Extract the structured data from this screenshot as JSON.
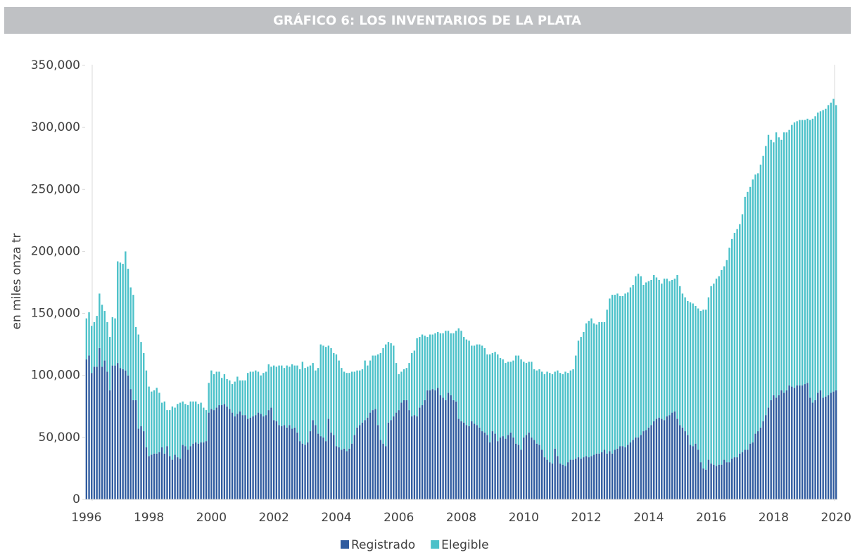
{
  "chart_data": {
    "type": "stacked_bar",
    "title": "GRÁFICO 6: LOS INVENTARIOS DE LA PLATA",
    "y_label": "en miles onza tr",
    "categories": [
      "1996",
      null,
      null,
      null,
      null,
      null,
      null,
      null,
      null,
      null,
      null,
      null,
      null,
      null,
      null,
      null,
      null,
      null,
      null,
      null,
      null,
      null,
      null,
      null,
      "1998",
      null,
      null,
      null,
      null,
      null,
      null,
      null,
      null,
      null,
      null,
      null,
      null,
      null,
      null,
      null,
      null,
      null,
      null,
      null,
      null,
      null,
      null,
      null,
      "2000",
      null,
      null,
      null,
      null,
      null,
      null,
      null,
      null,
      null,
      null,
      null,
      null,
      null,
      null,
      null,
      null,
      null,
      null,
      null,
      null,
      null,
      null,
      null,
      "2002",
      null,
      null,
      null,
      null,
      null,
      null,
      null,
      null,
      null,
      null,
      null,
      null,
      null,
      null,
      null,
      null,
      null,
      null,
      null,
      null,
      null,
      null,
      null,
      "2004",
      null,
      null,
      null,
      null,
      null,
      null,
      null,
      null,
      null,
      null,
      null,
      null,
      null,
      null,
      null,
      null,
      null,
      null,
      null,
      null,
      null,
      null,
      null,
      "2006",
      null,
      null,
      null,
      null,
      null,
      null,
      null,
      null,
      null,
      null,
      null,
      null,
      null,
      null,
      null,
      null,
      null,
      null,
      null,
      null,
      null,
      null,
      null,
      "2008",
      null,
      null,
      null,
      null,
      null,
      null,
      null,
      null,
      null,
      null,
      null,
      null,
      null,
      null,
      null,
      null,
      null,
      null,
      null,
      null,
      null,
      null,
      null,
      "2010",
      null,
      null,
      null,
      null,
      null,
      null,
      null,
      null,
      null,
      null,
      null,
      null,
      null,
      null,
      null,
      null,
      null,
      null,
      null,
      null,
      null,
      null,
      null,
      "2012",
      null,
      null,
      null,
      null,
      null,
      null,
      null,
      null,
      null,
      null,
      null,
      null,
      null,
      null,
      null,
      null,
      null,
      null,
      null,
      null,
      null,
      null,
      null,
      "2014",
      null,
      null,
      null,
      null,
      null,
      null,
      null,
      null,
      null,
      null,
      null,
      null,
      null,
      null,
      null,
      null,
      null,
      null,
      null,
      null,
      null,
      null,
      null,
      "2016",
      null,
      null,
      null,
      null,
      null,
      null,
      null,
      null,
      null,
      null,
      null,
      null,
      null,
      null,
      null,
      null,
      null,
      null,
      null,
      null,
      null,
      null,
      null,
      "2018",
      null,
      null,
      null,
      null,
      null,
      null,
      null,
      null,
      null,
      null,
      null,
      null,
      null,
      null,
      null,
      null,
      null,
      null,
      null,
      null,
      null,
      null,
      null,
      "2020"
    ],
    "series": [
      {
        "name": "Registrado",
        "color": "#2f5b9f",
        "values": [
          113000,
          116000,
          102000,
          107000,
          107000,
          122000,
          107000,
          112000,
          103000,
          88000,
          108000,
          108000,
          110000,
          106000,
          105000,
          104000,
          100000,
          89000,
          80000,
          80000,
          57000,
          59000,
          55000,
          42000,
          35000,
          36000,
          37000,
          37000,
          38000,
          42000,
          37000,
          43000,
          35000,
          32000,
          36000,
          34000,
          33000,
          44000,
          43000,
          40000,
          43000,
          45000,
          46000,
          45000,
          46000,
          46000,
          47000,
          70000,
          73000,
          72000,
          74000,
          76000,
          76000,
          77000,
          75000,
          73000,
          70000,
          67000,
          69000,
          71000,
          68000,
          68000,
          65000,
          66000,
          67000,
          68000,
          70000,
          69000,
          67000,
          68000,
          72000,
          74000,
          64000,
          63000,
          60000,
          59000,
          60000,
          58000,
          60000,
          57000,
          58000,
          54000,
          47000,
          45000,
          44000,
          46000,
          55000,
          64000,
          60000,
          53000,
          51000,
          50000,
          47000,
          65000,
          54000,
          52000,
          43000,
          42000,
          40000,
          41000,
          39000,
          41000,
          45000,
          52000,
          58000,
          60000,
          62000,
          64000,
          66000,
          70000,
          72000,
          73000,
          60000,
          48000,
          45000,
          43000,
          62000,
          64000,
          67000,
          70000,
          72000,
          78000,
          80000,
          80000,
          72000,
          67000,
          68000,
          67000,
          74000,
          76000,
          80000,
          88000,
          88000,
          89000,
          88000,
          90000,
          84000,
          82000,
          80000,
          86000,
          84000,
          80000,
          79000,
          65000,
          63000,
          62000,
          60000,
          59000,
          63000,
          61000,
          60000,
          58000,
          55000,
          54000,
          52000,
          46000,
          55000,
          53000,
          47000,
          50000,
          51000,
          49000,
          52000,
          54000,
          50000,
          45000,
          44000,
          40000,
          50000,
          52000,
          54000,
          50000,
          48000,
          45000,
          44000,
          40000,
          34000,
          32000,
          30000,
          29000,
          41000,
          35000,
          29000,
          28000,
          27000,
          30000,
          32000,
          32000,
          33000,
          34000,
          33000,
          34000,
          35000,
          34000,
          35000,
          36000,
          37000,
          37000,
          38000,
          40000,
          37000,
          39000,
          37000,
          40000,
          41000,
          43000,
          43000,
          42000,
          44000,
          46000,
          48000,
          50000,
          50000,
          52000,
          55000,
          56000,
          58000,
          60000,
          63000,
          65000,
          66000,
          65000,
          64000,
          67000,
          68000,
          70000,
          71000,
          65000,
          60000,
          58000,
          55000,
          52000,
          44000,
          43000,
          45000,
          40000,
          30000,
          25000,
          24000,
          32000,
          29000,
          28000,
          27000,
          28000,
          28000,
          32000,
          30000,
          30000,
          33000,
          34000,
          34000,
          37000,
          38000,
          40000,
          40000,
          45000,
          46000,
          53000,
          55000,
          58000,
          63000,
          68000,
          74000,
          80000,
          84000,
          82000,
          84000,
          88000,
          86000,
          88000,
          92000,
          91000,
          90000,
          92000,
          92000,
          92000,
          93000,
          94000,
          82000,
          78000,
          80000,
          86000,
          88000,
          82000,
          83000,
          84000,
          86000,
          87000,
          88000
        ]
      },
      {
        "name": "Elegible",
        "color": "#4bc1c9",
        "values": [
          33000,
          35000,
          38000,
          36000,
          41000,
          44000,
          50000,
          40000,
          40000,
          43000,
          39000,
          38000,
          82000,
          85000,
          85000,
          96000,
          86000,
          82000,
          85000,
          59000,
          76000,
          68000,
          63000,
          62000,
          56000,
          51000,
          51000,
          53000,
          48000,
          36000,
          42000,
          29000,
          37000,
          43000,
          38000,
          43000,
          45000,
          35000,
          34000,
          36000,
          36000,
          34000,
          33000,
          32000,
          32000,
          28000,
          25000,
          24000,
          31000,
          29000,
          29000,
          27000,
          22000,
          24000,
          22000,
          23000,
          23000,
          28000,
          30000,
          25000,
          28000,
          28000,
          37000,
          37000,
          36000,
          36000,
          33000,
          31000,
          35000,
          35000,
          37000,
          33000,
          44000,
          44000,
          48000,
          49000,
          46000,
          50000,
          47000,
          52000,
          50000,
          54000,
          58000,
          66000,
          62000,
          61000,
          53000,
          46000,
          44000,
          53000,
          74000,
          74000,
          76000,
          59000,
          68000,
          66000,
          74000,
          70000,
          66000,
          62000,
          63000,
          61000,
          58000,
          51000,
          46000,
          44000,
          43000,
          48000,
          42000,
          42000,
          44000,
          43000,
          57000,
          70000,
          77000,
          82000,
          65000,
          62000,
          57000,
          40000,
          29000,
          25000,
          25000,
          26000,
          38000,
          51000,
          52000,
          63000,
          57000,
          57000,
          52000,
          43000,
          45000,
          44000,
          46000,
          45000,
          50000,
          52000,
          56000,
          50000,
          50000,
          54000,
          57000,
          73000,
          73000,
          69000,
          69000,
          69000,
          61000,
          63000,
          65000,
          67000,
          69000,
          68000,
          65000,
          71000,
          63000,
          66000,
          70000,
          64000,
          62000,
          61000,
          59000,
          57000,
          62000,
          71000,
          72000,
          73000,
          61000,
          58000,
          57000,
          61000,
          57000,
          59000,
          61000,
          63000,
          67000,
          71000,
          72000,
          72000,
          62000,
          69000,
          73000,
          73000,
          76000,
          72000,
          72000,
          73000,
          83000,
          94000,
          98000,
          101000,
          107000,
          110000,
          111000,
          106000,
          104000,
          106000,
          105000,
          103000,
          116000,
          123000,
          128000,
          125000,
          125000,
          121000,
          121000,
          124000,
          123000,
          125000,
          125000,
          130000,
          132000,
          128000,
          118000,
          119000,
          118000,
          117000,
          118000,
          114000,
          111000,
          109000,
          114000,
          111000,
          108000,
          107000,
          107000,
          116000,
          112000,
          108000,
          108000,
          108000,
          115000,
          115000,
          111000,
          114000,
          122000,
          128000,
          129000,
          131000,
          143000,
          146000,
          151000,
          152000,
          157000,
          156000,
          163000,
          173000,
          177000,
          181000,
          184000,
          185000,
          192000,
          204000,
          208000,
          207000,
          212000,
          209000,
          208000,
          212000,
          214000,
          217000,
          220000,
          210000,
          204000,
          214000,
          208000,
          202000,
          210000,
          208000,
          206000,
          211000,
          214000,
          213000,
          214000,
          214000,
          213000,
          213000,
          224000,
          229000,
          229000,
          226000,
          225000,
          232000,
          232000,
          234000,
          234000,
          236000,
          230000
        ]
      }
    ],
    "ylim": [
      0,
      350000
    ],
    "yticks": [
      0,
      {
        "value": 50000,
        "label": "50,000"
      },
      {
        "value": 100000,
        "label": "100,000"
      },
      {
        "value": 150000,
        "label": "150,000"
      },
      {
        "value": 200000,
        "label": "200,000"
      },
      {
        "value": 250000,
        "label": "250,000"
      },
      {
        "value": 300000,
        "label": "300,000"
      },
      {
        "value": 350000,
        "label": "350,000"
      }
    ],
    "legend": "bottom"
  }
}
